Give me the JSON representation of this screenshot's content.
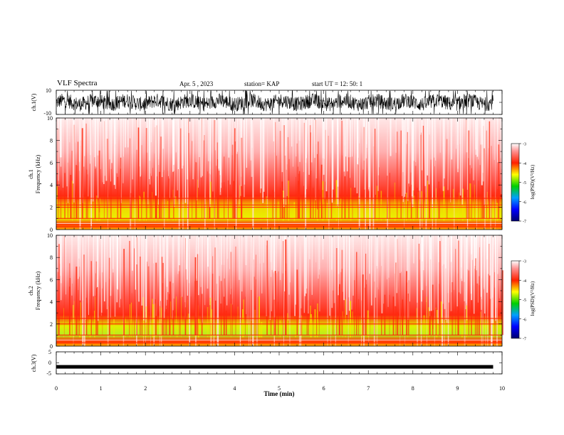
{
  "header": {
    "title": "VLF Spectra",
    "date": "Apr. 5 , 2023",
    "station": "station= KAP",
    "start_ut": "start UT = 12: 50: 1"
  },
  "colors": {
    "waveform": "#000000",
    "background": "#ffffff",
    "spectrum_low": "#00008b",
    "spectrum_mid_low": "#00c800",
    "spectrum_mid": "#ffff00",
    "spectrum_high": "#ff0000",
    "spectrum_max": "#ffffff"
  },
  "chart_data": [
    {
      "type": "line",
      "panel": "ch1-waveform",
      "ylabel": "ch.1(V)",
      "ylim": [
        -10,
        10
      ],
      "yticks": [
        "10",
        "-10"
      ],
      "xlim": [
        0,
        10
      ],
      "description_of_signal": "dense noisy waveform, amplitude mostly within ±8 V"
    },
    {
      "type": "heatmap",
      "panel": "ch1-spectrogram",
      "ylabel": "ch.1\nFrequency (kHz)",
      "ylabel_line1": "ch.1",
      "ylabel_line2": "Frequency (kHz)",
      "ylim": [
        0,
        10
      ],
      "yticks": [
        "0",
        "2",
        "4",
        "6",
        "8",
        "10"
      ],
      "xlim": [
        0,
        10
      ],
      "colorbar": {
        "label": "log(PSD)(V²/Hz)",
        "range": [
          -7,
          -3
        ],
        "ticks": [
          "-3",
          "-4",
          "-5",
          "-6",
          "-7"
        ]
      },
      "bands_khz": [
        0.25,
        1.0,
        2.0,
        2.2,
        2.8
      ]
    },
    {
      "type": "heatmap",
      "panel": "ch2-spectrogram",
      "ylabel": "ch.2\nFrequency (kHz)",
      "ylabel_line1": "ch.2",
      "ylabel_line2": "Frequency (kHz)",
      "ylim": [
        0,
        10
      ],
      "yticks": [
        "0",
        "2",
        "4",
        "6",
        "8",
        "10"
      ],
      "xlim": [
        0,
        10
      ],
      "colorbar": {
        "label": "log(PSD)(V²/Hz)",
        "range": [
          -7,
          -3
        ],
        "ticks": [
          "-3",
          "-4",
          "-5",
          "-6",
          "-7"
        ]
      },
      "bands_khz": [
        0.3,
        1.0,
        2.0,
        2.5
      ]
    },
    {
      "type": "line",
      "panel": "ch3-waveform",
      "ylabel": "ch.3(V)",
      "ylim": [
        -5,
        5
      ],
      "yticks": [
        "5",
        "0",
        "-5"
      ],
      "xlim": [
        0,
        10
      ],
      "level_v": -1.8,
      "xlabel": "Time (min)",
      "xticks": [
        "0",
        "1",
        "2",
        "3",
        "4",
        "5",
        "6",
        "7",
        "8",
        "9",
        "10"
      ],
      "data_end_min": 9.8
    }
  ]
}
